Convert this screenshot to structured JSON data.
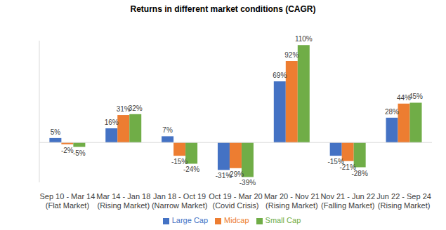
{
  "chart_data": {
    "type": "bar",
    "title": "Returns in different market conditions (CAGR)",
    "categories": [
      "Sep 10 - Mar 14 (Flat Market)",
      "Mar 14 - Jan 18 (Rising Market)",
      "Jan 18 - Oct 19 (Narrow Market)",
      "Oct 19 - Mar 20 (Covid Crisis)",
      "Mar 20 - Nov 21 (Rising Market)",
      "Nov 21 - Jun 22 (Falling Market)",
      "Jun 22 - Sep 24 (Rising Market)"
    ],
    "series": [
      {
        "name": "Large Cap",
        "color": "#4472c4",
        "values": [
          5,
          16,
          7,
          -31,
          69,
          -15,
          28
        ],
        "value_labels": [
          "5%",
          "16%",
          "7%",
          "-31%",
          "69%",
          "-15%",
          "28%"
        ]
      },
      {
        "name": "Midcap",
        "color": "#ed7d31",
        "values": [
          -2,
          31,
          -15,
          -29,
          92,
          -21,
          44
        ],
        "value_labels": [
          "-2%",
          "31%",
          "-15%",
          "-29%",
          "92%",
          "-21%",
          "44%"
        ]
      },
      {
        "name": "Small Cap",
        "color": "#70ad47",
        "values": [
          -5,
          32,
          -24,
          -39,
          110,
          -28,
          45
        ],
        "value_labels": [
          "-5%",
          "32%",
          "-24%",
          "-39%",
          "110%",
          "-28%",
          "45%"
        ]
      }
    ],
    "ylim": [
      -45,
      115
    ],
    "yticks": [
      0
    ],
    "tick_labels": "x",
    "data_labels": true,
    "legend": "bottom"
  }
}
